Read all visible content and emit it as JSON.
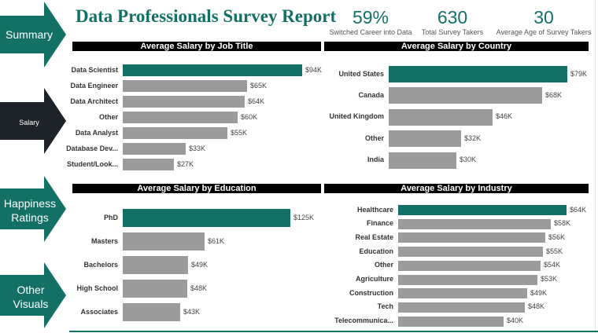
{
  "title": "Data Professionals Survey Report",
  "nav": [
    {
      "label": "Summary",
      "active": false
    },
    {
      "label": "Salary",
      "active": true
    },
    {
      "label": "Happiness Ratings",
      "active": false
    },
    {
      "label": "Other Visuals",
      "active": false
    }
  ],
  "kpis": [
    {
      "value": "59%",
      "label": "Switched Career into Data"
    },
    {
      "value": "630",
      "label": "Total Survey Takers"
    },
    {
      "value": "30",
      "label": "Average Age of Survey Takers"
    }
  ],
  "colors": {
    "accent": "#137067",
    "bar": "#9b9b9b",
    "active_nav": "#1e2229"
  },
  "chart_data": [
    {
      "type": "bar",
      "title": "Average Salary by Job Title",
      "categories": [
        "Data Scientist",
        "Data Engineer",
        "Data Architect",
        "Other",
        "Data Analyst",
        "Database Dev...",
        "Student/Look..."
      ],
      "values": [
        94,
        65,
        64,
        60,
        55,
        33,
        27
      ],
      "labels": [
        "$94K",
        "$65K",
        "$64K",
        "$60K",
        "$55K",
        "$33K",
        "$27K"
      ]
    },
    {
      "type": "bar",
      "title": "Average Salary by Country",
      "categories": [
        "United States",
        "Canada",
        "United Kingdom",
        "Other",
        "India"
      ],
      "values": [
        79,
        68,
        46,
        32,
        30
      ],
      "labels": [
        "$79K",
        "$68K",
        "$46K",
        "$32K",
        "$30K"
      ]
    },
    {
      "type": "bar",
      "title": "Average Salary by Education",
      "categories": [
        "PhD",
        "Masters",
        "Bachelors",
        "High School",
        "Associates"
      ],
      "values": [
        125,
        61,
        49,
        48,
        43
      ],
      "labels": [
        "$125K",
        "$61K",
        "$49K",
        "$48K",
        "$43K"
      ]
    },
    {
      "type": "bar",
      "title": "Average Salary by Industry",
      "categories": [
        "Healthcare",
        "Finance",
        "Real Estate",
        "Education",
        "Other",
        "Agriculture",
        "Construction",
        "Tech",
        "Telecommunica..."
      ],
      "values": [
        64,
        58,
        56,
        55,
        54,
        53,
        49,
        48,
        40
      ],
      "labels": [
        "$64K",
        "$58K",
        "$56K",
        "$55K",
        "$54K",
        "$53K",
        "$49K",
        "$48K",
        "$40K"
      ]
    }
  ]
}
